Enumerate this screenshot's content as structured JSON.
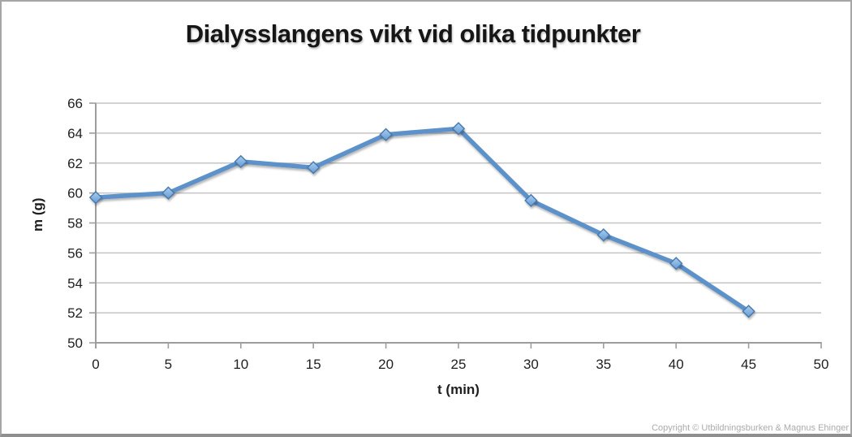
{
  "chart_data": {
    "type": "line",
    "title": "Dialysslangens vikt vid olika tidpunkter",
    "xlabel": "t (min)",
    "ylabel": "m (g)",
    "x": [
      0,
      5,
      10,
      15,
      20,
      25,
      30,
      35,
      40,
      45
    ],
    "values": [
      59.7,
      60.0,
      62.1,
      61.7,
      63.9,
      64.3,
      59.5,
      57.2,
      55.3,
      52.1
    ],
    "xlim": [
      0,
      50
    ],
    "ylim": [
      50,
      66
    ],
    "x_ticks": [
      0,
      5,
      10,
      15,
      20,
      25,
      30,
      35,
      40,
      45,
      50
    ],
    "y_ticks": [
      50,
      52,
      54,
      56,
      58,
      60,
      62,
      64,
      66
    ],
    "grid": "horizontal",
    "legend": "none",
    "marker": "diamond",
    "colors": {
      "line": "#5b91c9",
      "marker_fill_light": "#abceef",
      "marker_fill_dark": "#649bd3",
      "marker_border": "#4779ae",
      "gridline": "#c4c4c4",
      "axis": "#9d9d9d",
      "tick_text": "#1f1f1f",
      "copyright_text": "#ababab"
    }
  },
  "footer": {
    "copyright": "Copyright © Utbildningsburken & Magnus Ehinger"
  }
}
